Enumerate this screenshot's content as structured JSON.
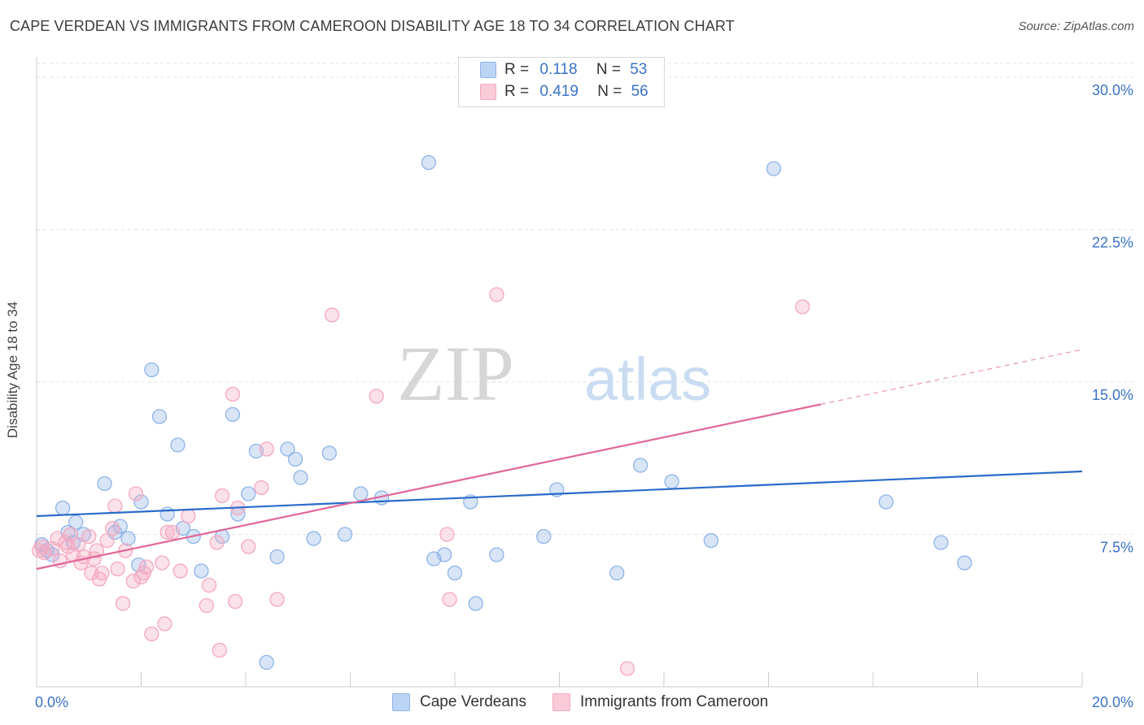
{
  "header": {
    "title": "CAPE VERDEAN VS IMMIGRANTS FROM CAMEROON DISABILITY AGE 18 TO 34 CORRELATION CHART",
    "source": "Source: ZipAtlas.com"
  },
  "watermark": {
    "part1": "ZIP",
    "part2": "atlas"
  },
  "legend_top": [
    {
      "r_label": "R =",
      "r_value": "0.118",
      "n_label": "N =",
      "n_value": "53"
    },
    {
      "r_label": "R =",
      "r_value": "0.419",
      "n_label": "N =",
      "n_value": "56"
    }
  ],
  "chart_data": {
    "type": "scatter",
    "title": "CAPE VERDEAN VS IMMIGRANTS FROM CAMEROON DISABILITY AGE 18 TO 34 CORRELATION CHART",
    "xlabel": "",
    "ylabel": "Disability Age 18 to 34",
    "xlim": [
      0,
      20
    ],
    "ylim": [
      0,
      31
    ],
    "x_tick_labels": [
      "0.0%",
      "20.0%"
    ],
    "y_ticks": [
      7.5,
      15.0,
      22.5,
      30.0
    ],
    "y_tick_labels": [
      "7.5%",
      "15.0%",
      "22.5%",
      "30.0%"
    ],
    "grid": true,
    "legend_position": "bottom",
    "series": [
      {
        "name": "Cape Verdeans",
        "color": "#8fb4e8",
        "line_color": "#2a6acb",
        "trend": {
          "x": [
            0,
            20
          ],
          "y": [
            8.4,
            10.6
          ],
          "dashed_from": null
        },
        "points": [
          [
            0.1,
            7.0
          ],
          [
            0.2,
            6.7
          ],
          [
            0.3,
            6.5
          ],
          [
            0.5,
            8.8
          ],
          [
            0.6,
            7.6
          ],
          [
            0.7,
            7.1
          ],
          [
            0.75,
            8.1
          ],
          [
            0.9,
            7.5
          ],
          [
            1.3,
            10.0
          ],
          [
            1.5,
            7.6
          ],
          [
            1.6,
            7.9
          ],
          [
            1.75,
            7.3
          ],
          [
            1.95,
            6.0
          ],
          [
            2.0,
            9.1
          ],
          [
            2.2,
            15.6
          ],
          [
            2.35,
            13.3
          ],
          [
            2.5,
            8.5
          ],
          [
            2.7,
            11.9
          ],
          [
            2.8,
            7.8
          ],
          [
            3.0,
            7.4
          ],
          [
            3.15,
            5.7
          ],
          [
            3.55,
            7.4
          ],
          [
            3.75,
            13.4
          ],
          [
            3.85,
            8.5
          ],
          [
            4.05,
            9.5
          ],
          [
            4.2,
            11.6
          ],
          [
            4.4,
            1.2
          ],
          [
            4.6,
            6.4
          ],
          [
            4.8,
            11.7
          ],
          [
            4.95,
            11.2
          ],
          [
            5.05,
            10.3
          ],
          [
            5.3,
            7.3
          ],
          [
            5.6,
            11.5
          ],
          [
            5.9,
            7.5
          ],
          [
            6.2,
            9.5
          ],
          [
            6.6,
            9.3
          ],
          [
            7.5,
            25.8
          ],
          [
            7.6,
            6.3
          ],
          [
            7.8,
            6.5
          ],
          [
            8.0,
            5.6
          ],
          [
            8.3,
            9.1
          ],
          [
            8.4,
            4.1
          ],
          [
            8.8,
            6.5
          ],
          [
            9.7,
            7.4
          ],
          [
            9.95,
            9.7
          ],
          [
            11.1,
            5.6
          ],
          [
            11.55,
            10.9
          ],
          [
            12.15,
            10.1
          ],
          [
            12.9,
            7.2
          ],
          [
            14.1,
            25.5
          ],
          [
            16.25,
            9.1
          ],
          [
            17.3,
            7.1
          ],
          [
            17.75,
            6.1
          ]
        ]
      },
      {
        "name": "Immigrants from Cameroon",
        "color": "#f4a9c0",
        "line_color": "#e0679a",
        "trend": {
          "x": [
            0,
            20
          ],
          "y": [
            5.8,
            16.6
          ],
          "dashed_from": 15.0
        },
        "points": [
          [
            0.05,
            6.7
          ],
          [
            0.1,
            6.9
          ],
          [
            0.15,
            6.6
          ],
          [
            0.3,
            6.8
          ],
          [
            0.4,
            7.3
          ],
          [
            0.45,
            6.2
          ],
          [
            0.55,
            7.1
          ],
          [
            0.65,
            7.5
          ],
          [
            0.7,
            6.5
          ],
          [
            0.8,
            7.0
          ],
          [
            0.85,
            6.1
          ],
          [
            0.9,
            6.4
          ],
          [
            1.0,
            7.4
          ],
          [
            1.05,
            5.6
          ],
          [
            1.15,
            6.7
          ],
          [
            1.2,
            5.3
          ],
          [
            1.25,
            5.6
          ],
          [
            1.35,
            7.2
          ],
          [
            1.45,
            7.8
          ],
          [
            1.5,
            8.9
          ],
          [
            1.55,
            5.8
          ],
          [
            1.65,
            4.1
          ],
          [
            1.7,
            6.7
          ],
          [
            1.85,
            5.2
          ],
          [
            1.9,
            9.5
          ],
          [
            2.0,
            5.4
          ],
          [
            2.05,
            5.6
          ],
          [
            2.1,
            5.9
          ],
          [
            2.2,
            2.6
          ],
          [
            2.4,
            6.1
          ],
          [
            2.45,
            3.1
          ],
          [
            2.5,
            7.6
          ],
          [
            2.6,
            7.6
          ],
          [
            2.75,
            5.7
          ],
          [
            2.9,
            8.4
          ],
          [
            3.25,
            4.0
          ],
          [
            3.3,
            5.0
          ],
          [
            3.45,
            7.1
          ],
          [
            3.5,
            1.8
          ],
          [
            3.55,
            9.4
          ],
          [
            3.75,
            14.4
          ],
          [
            3.8,
            4.2
          ],
          [
            3.85,
            8.8
          ],
          [
            4.05,
            6.9
          ],
          [
            4.3,
            9.8
          ],
          [
            4.4,
            11.7
          ],
          [
            4.6,
            4.3
          ],
          [
            5.65,
            18.3
          ],
          [
            6.5,
            14.3
          ],
          [
            7.85,
            7.5
          ],
          [
            7.9,
            4.3
          ],
          [
            8.8,
            19.3
          ],
          [
            11.3,
            0.9
          ],
          [
            14.65,
            18.7
          ],
          [
            0.6,
            6.9
          ],
          [
            1.1,
            6.3
          ]
        ]
      }
    ]
  },
  "legend_bottom": [
    {
      "label": "Cape Verdeans"
    },
    {
      "label": "Immigrants from Cameroon"
    }
  ]
}
